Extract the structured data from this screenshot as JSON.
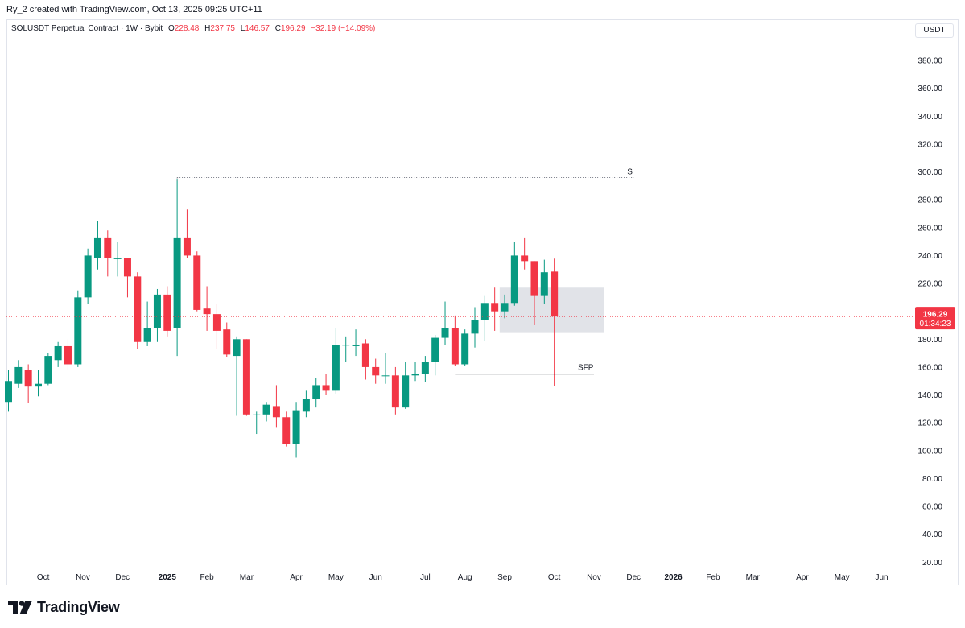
{
  "caption": "Ry_2 created with TradingView.com, Oct 13, 2025 09:25 UTC+11",
  "legend": {
    "symbol": "SOLUSDT Perpetual Contract · 1W · Bybit",
    "o_key": "O",
    "o": "228.48",
    "h_key": "H",
    "h": "237.75",
    "l_key": "L",
    "l": "146.57",
    "c_key": "C",
    "c": "196.29",
    "change": "−32.19 (−14.09%)"
  },
  "currency": "USDT",
  "brand": "TradingView",
  "colors": {
    "up": "#089981",
    "down": "#f23645",
    "grid_line": "#787b86"
  },
  "chart_data": {
    "type": "candlestick",
    "timeframe": "1W",
    "y_range": [
      10,
      400
    ],
    "y_ticks": [
      "380.00",
      "360.00",
      "340.00",
      "320.00",
      "300.00",
      "280.00",
      "260.00",
      "240.00",
      "220.00",
      "200.00",
      "180.00",
      "160.00",
      "140.00",
      "120.00",
      "100.00",
      "80.00",
      "60.00",
      "40.00",
      "20.00"
    ],
    "x_ticks": [
      "Oct",
      "Nov",
      "Dec",
      "2025",
      "Feb",
      "Mar",
      "Apr",
      "May",
      "Jun",
      "Jul",
      "Aug",
      "Sep",
      "Oct",
      "Nov",
      "Dec",
      "2026",
      "Feb",
      "Mar",
      "Apr",
      "May",
      "Jun"
    ],
    "x_tick_index": [
      3.5,
      7.5,
      11.5,
      16,
      20,
      24,
      29,
      33,
      37,
      42,
      46,
      50,
      55,
      59,
      63,
      67,
      71,
      75,
      80,
      84,
      88
    ],
    "candles": [
      {
        "o": 135,
        "h": 158,
        "l": 128,
        "c": 150
      },
      {
        "o": 148,
        "h": 165,
        "l": 145,
        "c": 160
      },
      {
        "o": 158,
        "h": 162,
        "l": 134,
        "c": 146
      },
      {
        "o": 146,
        "h": 158,
        "l": 139,
        "c": 148
      },
      {
        "o": 148,
        "h": 170,
        "l": 147,
        "c": 168
      },
      {
        "o": 165,
        "h": 178,
        "l": 160,
        "c": 175
      },
      {
        "o": 175,
        "h": 180,
        "l": 158,
        "c": 162
      },
      {
        "o": 162,
        "h": 215,
        "l": 160,
        "c": 210
      },
      {
        "o": 210,
        "h": 245,
        "l": 205,
        "c": 240
      },
      {
        "o": 238,
        "h": 265,
        "l": 230,
        "c": 253
      },
      {
        "o": 253,
        "h": 258,
        "l": 225,
        "c": 238
      },
      {
        "o": 238,
        "h": 250,
        "l": 225,
        "c": 238
      },
      {
        "o": 238,
        "h": 238,
        "l": 210,
        "c": 225
      },
      {
        "o": 225,
        "h": 228,
        "l": 173,
        "c": 178
      },
      {
        "o": 178,
        "h": 207,
        "l": 175,
        "c": 188
      },
      {
        "o": 188,
        "h": 216,
        "l": 178,
        "c": 212
      },
      {
        "o": 212,
        "h": 218,
        "l": 182,
        "c": 186
      },
      {
        "o": 188,
        "h": 295,
        "l": 168,
        "c": 253
      },
      {
        "o": 253,
        "h": 273,
        "l": 238,
        "c": 240
      },
      {
        "o": 240,
        "h": 243,
        "l": 200,
        "c": 201
      },
      {
        "o": 202,
        "h": 218,
        "l": 186,
        "c": 198
      },
      {
        "o": 198,
        "h": 205,
        "l": 173,
        "c": 186
      },
      {
        "o": 187,
        "h": 192,
        "l": 167,
        "c": 169
      },
      {
        "o": 168,
        "h": 182,
        "l": 125,
        "c": 180
      },
      {
        "o": 180,
        "h": 180,
        "l": 125,
        "c": 126
      },
      {
        "o": 126,
        "h": 128,
        "l": 112,
        "c": 126
      },
      {
        "o": 126,
        "h": 135,
        "l": 121,
        "c": 133
      },
      {
        "o": 132,
        "h": 147,
        "l": 117,
        "c": 124
      },
      {
        "o": 124,
        "h": 128,
        "l": 103,
        "c": 105
      },
      {
        "o": 105,
        "h": 135,
        "l": 95,
        "c": 129
      },
      {
        "o": 128,
        "h": 143,
        "l": 124,
        "c": 137
      },
      {
        "o": 137,
        "h": 152,
        "l": 131,
        "c": 147
      },
      {
        "o": 147,
        "h": 155,
        "l": 140,
        "c": 143
      },
      {
        "o": 143,
        "h": 188,
        "l": 141,
        "c": 176
      },
      {
        "o": 176,
        "h": 182,
        "l": 164,
        "c": 176
      },
      {
        "o": 175,
        "h": 187,
        "l": 168,
        "c": 176
      },
      {
        "o": 177,
        "h": 180,
        "l": 151,
        "c": 160
      },
      {
        "o": 160,
        "h": 166,
        "l": 148,
        "c": 154
      },
      {
        "o": 154,
        "h": 170,
        "l": 148,
        "c": 154
      },
      {
        "o": 154,
        "h": 160,
        "l": 126,
        "c": 131
      },
      {
        "o": 131,
        "h": 164,
        "l": 130,
        "c": 154
      },
      {
        "o": 154,
        "h": 164,
        "l": 150,
        "c": 155
      },
      {
        "o": 155,
        "h": 168,
        "l": 149,
        "c": 164
      },
      {
        "o": 164,
        "h": 183,
        "l": 154,
        "c": 181
      },
      {
        "o": 181,
        "h": 207,
        "l": 176,
        "c": 188
      },
      {
        "o": 188,
        "h": 197,
        "l": 161,
        "c": 162
      },
      {
        "o": 162,
        "h": 187,
        "l": 161,
        "c": 184
      },
      {
        "o": 184,
        "h": 203,
        "l": 174,
        "c": 194
      },
      {
        "o": 194,
        "h": 211,
        "l": 179,
        "c": 206
      },
      {
        "o": 206,
        "h": 217,
        "l": 186,
        "c": 200
      },
      {
        "o": 200,
        "h": 212,
        "l": 195,
        "c": 206
      },
      {
        "o": 206,
        "h": 250,
        "l": 204,
        "c": 240
      },
      {
        "o": 240,
        "h": 253,
        "l": 230,
        "c": 236
      },
      {
        "o": 236,
        "h": 236,
        "l": 190,
        "c": 211
      },
      {
        "o": 211,
        "h": 237,
        "l": 205,
        "c": 228
      },
      {
        "o": 228.48,
        "h": 237.75,
        "l": 146.57,
        "c": 196.29
      }
    ],
    "resistance_level": {
      "label": "S",
      "value": 296,
      "from_index": 17,
      "to_index": 63
    },
    "sfp_level": {
      "label": "SFP",
      "value": 155,
      "from_index": 45,
      "to_index": 59
    },
    "highlight_zone": {
      "top": 217,
      "bottom": 185,
      "from_index": 49.5,
      "to_index": 60
    },
    "last_price": {
      "value": "196.29",
      "countdown": "01:34:23",
      "level": 196.29
    }
  }
}
